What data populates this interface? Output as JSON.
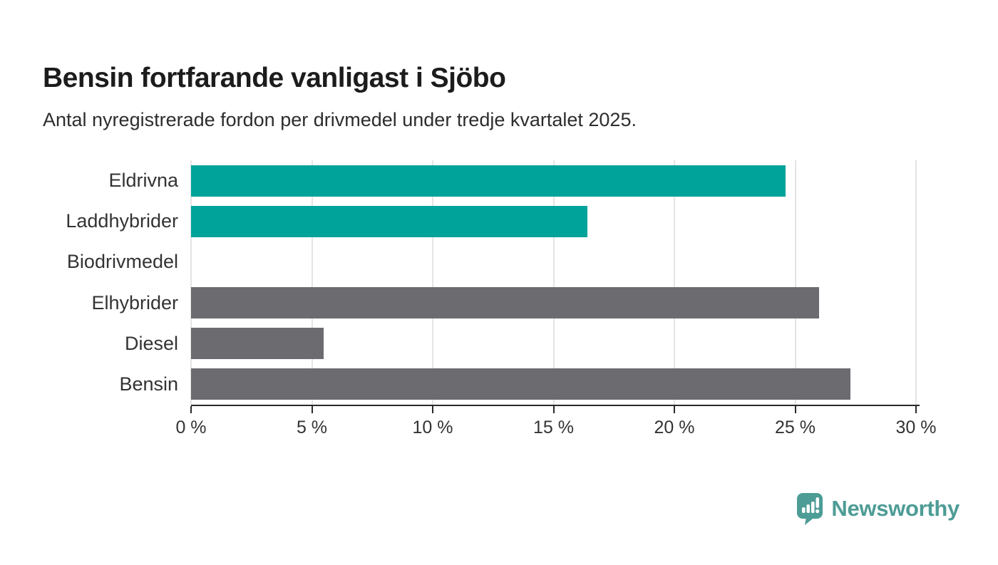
{
  "header": {
    "title": "Bensin fortfarande vanligast i Sjöbo",
    "subtitle": "Antal nyregistrerade fordon per drivmedel under tredje kvartalet 2025."
  },
  "chart_data": {
    "type": "bar",
    "orientation": "horizontal",
    "title": "Bensin fortfarande vanligast i Sjöbo",
    "subtitle": "Antal nyregistrerade fordon per drivmedel under tredje kvartalet 2025.",
    "categories": [
      "Eldrivna",
      "Laddhybrider",
      "Biodrivmedel",
      "Elhybrider",
      "Diesel",
      "Bensin"
    ],
    "values": [
      24.6,
      16.4,
      0,
      26.0,
      5.5,
      27.3
    ],
    "unit": "%",
    "xlim": [
      0,
      30
    ],
    "x_ticks": [
      0,
      5,
      10,
      15,
      20,
      25,
      30
    ],
    "x_tick_labels": [
      "0 %",
      "5 %",
      "10 %",
      "15 %",
      "20 %",
      "25 %",
      "30 %"
    ],
    "bar_colors": [
      "#00a39a",
      "#00a39a",
      "#6c6b70",
      "#6c6b70",
      "#6c6b70",
      "#6c6b70"
    ],
    "highlight_color": "#00a39a",
    "default_color": "#6c6b70",
    "gridline_color": "#e4e4e4",
    "axis_color": "#2a2a2a",
    "grid": true,
    "legend": false,
    "xlabel": "",
    "ylabel": ""
  },
  "footer": {
    "brand": "Newsworthy",
    "brand_color": "#4d9c96",
    "logo_icon": "newsworthy-bubble-chart-icon"
  }
}
